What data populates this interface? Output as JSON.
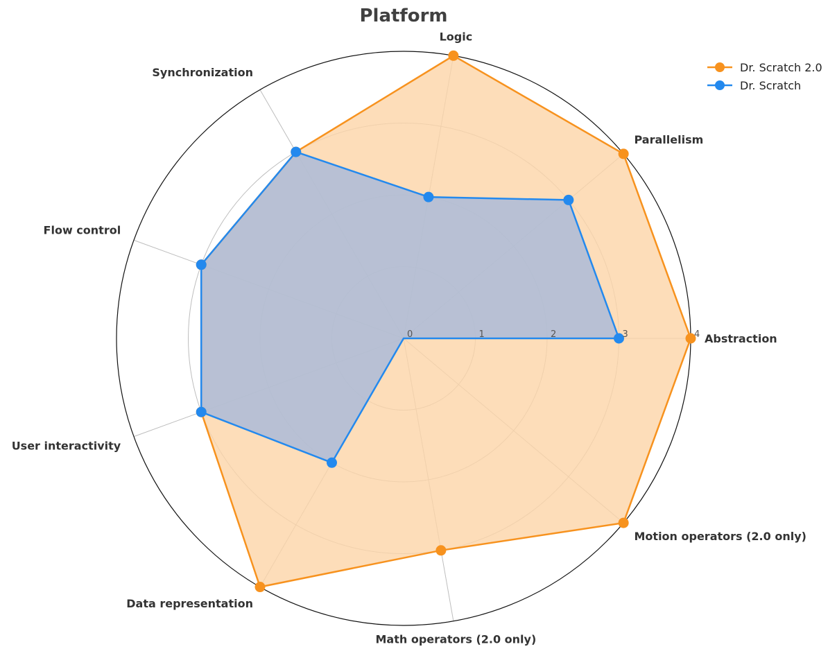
{
  "chart_data": {
    "type": "radar",
    "title": "Platform",
    "axes": [
      "Abstraction",
      "Parallelism",
      "Logic",
      "Synchronization",
      "Flow control",
      "User interactivity",
      "Data representation",
      "Math operators (2.0 only)",
      "Motion operators (2.0 only)"
    ],
    "rlim": [
      0,
      4
    ],
    "rticks": [
      "0",
      "1",
      "2",
      "3",
      "4"
    ],
    "grid": true,
    "legend_position": "top-right",
    "series": [
      {
        "name": "Dr. Scratch 2.0",
        "values": [
          4,
          4,
          4,
          3,
          3,
          3,
          4,
          3,
          4
        ],
        "color": "#f7921e",
        "fill": "#fcd4a8"
      },
      {
        "name": "Dr. Scratch",
        "values": [
          3,
          3,
          2,
          3,
          3,
          3,
          2,
          0,
          0
        ],
        "color": "#2389ee",
        "fill": "#a6b9db"
      }
    ]
  }
}
